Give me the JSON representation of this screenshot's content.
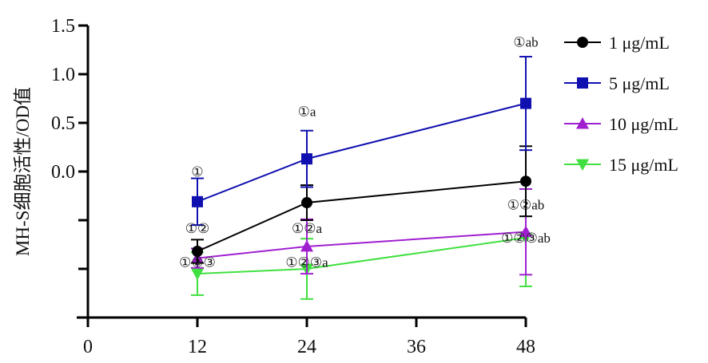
{
  "chart_data": {
    "type": "line",
    "title": "",
    "xlabel": "",
    "ylabel": "MH-S细胞活性/OD值",
    "xlim": [
      0,
      48
    ],
    "ylim": [
      -1.5,
      1.5
    ],
    "x_ticks": [
      0,
      12,
      24,
      36,
      48
    ],
    "x_tick_labels": [
      "0",
      "12",
      "24",
      "36",
      "48"
    ],
    "y_ticks": [
      -1.5,
      -1.0,
      -0.5,
      0.0,
      0.5,
      1.0,
      1.5
    ],
    "y_tick_labels": [
      "",
      "",
      "",
      "0.0",
      "0.5",
      "1.0",
      "1.5"
    ],
    "x": [
      12,
      24,
      48
    ],
    "grid": false,
    "legend_position": "top-right",
    "series": [
      {
        "name": "1 μg/mL",
        "marker": "circle",
        "color": "#000000",
        "values": [
          -0.82,
          -0.32,
          -0.1
        ],
        "errors": [
          0.12,
          0.18,
          0.36
        ]
      },
      {
        "name": "5 μg/mL",
        "marker": "square",
        "color": "#1010b0",
        "values": [
          -0.31,
          0.13,
          0.7
        ],
        "errors": [
          0.24,
          0.29,
          0.48
        ]
      },
      {
        "name": "10 μg/mL",
        "marker": "triangle-up",
        "color": "#a020d0",
        "values": [
          -0.89,
          -0.77,
          -0.62
        ],
        "errors": [
          0.1,
          0.28,
          0.44
        ]
      },
      {
        "name": "15 μg/mL",
        "marker": "triangle-down",
        "color": "#40e040",
        "values": [
          -1.05,
          -1.0,
          -0.68
        ],
        "errors": [
          0.22,
          0.31,
          0.5
        ]
      }
    ],
    "annotations": [
      {
        "text": "①",
        "x": 12,
        "y": 0.0,
        "anchor": "middle"
      },
      {
        "text": "①②",
        "x": 12,
        "y": -0.58,
        "anchor": "middle"
      },
      {
        "text": "①②③",
        "x": 12,
        "y": -0.93,
        "anchor": "middle"
      },
      {
        "text": "①a",
        "x": 24,
        "y": 0.62,
        "anchor": "middle"
      },
      {
        "text": "①②a",
        "x": 24,
        "y": -0.58,
        "anchor": "middle"
      },
      {
        "text": "①②③a",
        "x": 24,
        "y": -0.93,
        "anchor": "middle"
      },
      {
        "text": "①ab",
        "x": 48,
        "y": 1.33,
        "anchor": "middle"
      },
      {
        "text": "①②ab",
        "x": 48,
        "y": -0.34,
        "anchor": "middle"
      },
      {
        "text": "①②③ab",
        "x": 48,
        "y": -0.68,
        "anchor": "middle"
      }
    ]
  }
}
